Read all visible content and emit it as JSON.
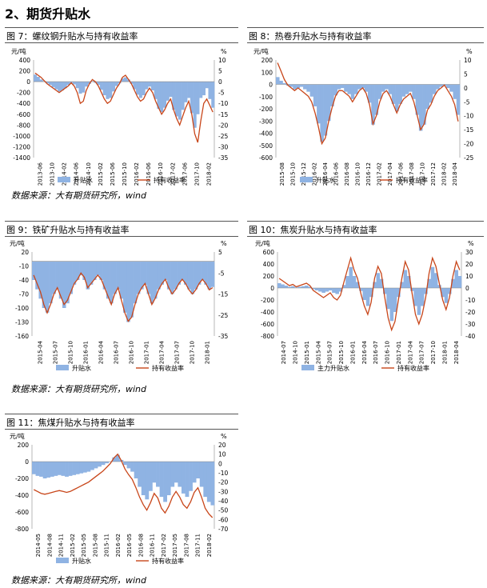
{
  "section_title": "2、期货升贴水",
  "source_text": "数据来源：大有期货研究所，wind",
  "colors": {
    "bar": "#8fb3e3",
    "line": "#c8461a"
  },
  "chart_data": [
    {
      "id": "c7",
      "type": "bar",
      "title": "图 7：螺纹钢升贴水与持有收益率",
      "ylabel_left": "元/吨",
      "ylabel_right": "%",
      "left_ticks": [
        "400",
        "200",
        "0",
        "-200",
        "-400",
        "-600",
        "-800",
        "-1000",
        "-1200",
        "-1400"
      ],
      "right_ticks": [
        "10",
        "5",
        "0",
        "-5",
        "-10",
        "-15",
        "-20",
        "-25",
        "-30",
        "-35"
      ],
      "x_ticks": [
        "2013-06",
        "2013-10",
        "2014-02",
        "2014-06",
        "2014-10",
        "2015-02",
        "2015-06",
        "2015-10",
        "2016-02",
        "2016-06",
        "2016-10",
        "2017-02",
        "2017-06",
        "2017-10",
        "2018-02"
      ],
      "legend": [
        {
          "label": "升贴水",
          "kind": "bar"
        },
        {
          "label": "持有收益率",
          "kind": "line"
        }
      ],
      "ylim_left": [
        -1400,
        400
      ],
      "ylim_right": [
        -35,
        10
      ],
      "bar_values": [
        130,
        90,
        40,
        10,
        -30,
        -60,
        -100,
        -140,
        -180,
        -160,
        -120,
        -60,
        -20,
        -50,
        -120,
        -220,
        -200,
        -90,
        -40,
        10,
        -20,
        -60,
        -150,
        -250,
        -320,
        -300,
        -180,
        -80,
        -30,
        60,
        80,
        40,
        -40,
        -140,
        -240,
        -300,
        -250,
        -140,
        -90,
        -160,
        -320,
        -500,
        -560,
        -480,
        -350,
        -280,
        -520,
        -640,
        -700,
        -520,
        -380,
        -300,
        -580,
        -850,
        -600,
        -300,
        -250,
        -120,
        -320,
        -480
      ],
      "line_values": [
        4,
        3,
        2,
        0.5,
        -1,
        -2,
        -3,
        -4,
        -5,
        -4,
        -3,
        -2,
        -0.5,
        -2,
        -5,
        -10,
        -9,
        -4,
        -1,
        1,
        0,
        -2,
        -5,
        -8,
        -10,
        -9,
        -6,
        -3,
        -1,
        2,
        3,
        1,
        -1,
        -4,
        -7,
        -9,
        -8,
        -5,
        -3,
        -5,
        -9,
        -12,
        -15,
        -13,
        -10,
        -8,
        -13,
        -17,
        -20,
        -16,
        -12,
        -9,
        -15,
        -24,
        -28,
        -18,
        -10,
        -8,
        -11,
        -14
      ]
    },
    {
      "id": "c8",
      "type": "bar",
      "title": "图 8：热卷升贴水与持有收益率",
      "ylabel_left": "元/吨",
      "ylabel_right": "%",
      "left_ticks": [
        "200",
        "100",
        "0",
        "-100",
        "-200",
        "-300",
        "-400",
        "-500",
        "-600"
      ],
      "right_ticks": [
        "10",
        "5",
        "0",
        "-5",
        "-10",
        "-15",
        "-20",
        "-25"
      ],
      "x_ticks": [
        "2015-08",
        "2015-10",
        "2015-12",
        "2016-02",
        "2016-04",
        "2016-06",
        "2016-08",
        "2016-10",
        "2016-12",
        "2017-02",
        "2017-04",
        "2017-06",
        "2017-08",
        "2017-10",
        "2017-12",
        "2018-02",
        "2018-04"
      ],
      "legend": [
        {
          "label": "升贴水",
          "kind": "bar"
        },
        {
          "label": "持有收益率",
          "kind": "line"
        }
      ],
      "ylim_left": [
        -600,
        200
      ],
      "ylim_right": [
        -25,
        10
      ],
      "bar_values": [
        60,
        30,
        10,
        -10,
        -20,
        -40,
        -30,
        -20,
        -40,
        -60,
        -100,
        -180,
        -320,
        -470,
        -420,
        -300,
        -180,
        -90,
        -40,
        -30,
        -60,
        -80,
        -120,
        -80,
        -40,
        -30,
        -60,
        -150,
        -330,
        -250,
        -120,
        -60,
        -40,
        -80,
        -160,
        -220,
        -160,
        -100,
        -80,
        -60,
        -120,
        -250,
        -380,
        -330,
        -200,
        -150,
        -80,
        -40,
        -20,
        -10,
        -30,
        -60,
        -120,
        -250
      ],
      "line_values": [
        9,
        6,
        3,
        1,
        0,
        -1,
        0,
        -1,
        -2,
        -3,
        -5,
        -9,
        -14,
        -20,
        -18,
        -12,
        -7,
        -3,
        -1,
        -1,
        -2,
        -3,
        -5,
        -3,
        -1,
        0,
        -2,
        -6,
        -13,
        -10,
        -5,
        -2,
        -1,
        -3,
        -6,
        -9,
        -6,
        -4,
        -3,
        -2,
        -5,
        -10,
        -15,
        -13,
        -8,
        -6,
        -3,
        -1,
        0,
        1,
        -1,
        -3,
        -6,
        -12
      ]
    },
    {
      "id": "c9",
      "type": "bar",
      "title": "图 9：铁矿升贴水与持有收益率",
      "ylabel_left": "元/吨",
      "ylabel_right": "%",
      "left_ticks": [
        "20",
        "-10",
        "-40",
        "-70",
        "-100",
        "-130",
        "-160"
      ],
      "right_ticks": [
        "5",
        "-5",
        "-15",
        "-25",
        "-35"
      ],
      "x_ticks": [
        "2015-04",
        "2015-07",
        "2015-10",
        "2016-01",
        "2016-04",
        "2016-07",
        "2016-10",
        "2017-01",
        "2017-04",
        "2017-07",
        "2017-10",
        "2018-01"
      ],
      "legend": [
        {
          "label": "升贴水",
          "kind": "bar"
        },
        {
          "label": "持有收益率",
          "kind": "line"
        }
      ],
      "ylim_left": [
        -160,
        20
      ],
      "ylim_right": [
        -35,
        5
      ],
      "bar_values": [
        -40,
        -60,
        -80,
        -100,
        -110,
        -90,
        -70,
        -60,
        -80,
        -100,
        -90,
        -70,
        -50,
        -40,
        -30,
        -40,
        -60,
        -50,
        -40,
        -30,
        -40,
        -60,
        -80,
        -90,
        -70,
        -60,
        -80,
        -110,
        -130,
        -120,
        -90,
        -70,
        -60,
        -50,
        -70,
        -90,
        -80,
        -60,
        -50,
        -40,
        -60,
        -70,
        -60,
        -50,
        -40,
        -50,
        -60,
        -70,
        -60,
        -50,
        -40,
        -50,
        -60,
        -55
      ],
      "line_values": [
        -6,
        -10,
        -14,
        -20,
        -24,
        -20,
        -15,
        -12,
        -16,
        -20,
        -18,
        -14,
        -10,
        -8,
        -5,
        -7,
        -12,
        -10,
        -8,
        -6,
        -8,
        -12,
        -16,
        -20,
        -15,
        -12,
        -18,
        -24,
        -28,
        -26,
        -20,
        -15,
        -12,
        -10,
        -15,
        -20,
        -17,
        -13,
        -10,
        -8,
        -12,
        -15,
        -13,
        -10,
        -8,
        -10,
        -13,
        -15,
        -13,
        -10,
        -8,
        -10,
        -13,
        -12
      ]
    },
    {
      "id": "c10",
      "type": "bar",
      "title": "图 10：焦炭升贴水与持有收益率",
      "ylabel_left": "元/吨",
      "ylabel_right": "%",
      "left_ticks": [
        "600",
        "400",
        "200",
        "0",
        "-200",
        "-400",
        "-600",
        "-800"
      ],
      "right_ticks": [
        "30",
        "20",
        "10",
        "0",
        "-10",
        "-20",
        "-30",
        "-40"
      ],
      "x_ticks": [
        "2014-07",
        "2014-10",
        "2015-01",
        "2015-04",
        "2015-07",
        "2015-10",
        "2016-01",
        "2016-04",
        "2016-07",
        "2016-10",
        "2017-01",
        "2017-04",
        "2017-07",
        "2017-10",
        "2018-01",
        "2018-04"
      ],
      "legend": [
        {
          "label": "主力升贴水",
          "kind": "bar"
        },
        {
          "label": "持有收益率",
          "kind": "line"
        }
      ],
      "ylim_left": [
        -800,
        600
      ],
      "ylim_right": [
        -40,
        30
      ],
      "bar_values": [
        80,
        60,
        40,
        20,
        30,
        10,
        20,
        30,
        40,
        20,
        -20,
        -40,
        -60,
        -80,
        -60,
        -40,
        -80,
        -100,
        -60,
        50,
        200,
        350,
        200,
        100,
        -50,
        -200,
        -300,
        -150,
        100,
        250,
        150,
        -100,
        -350,
        -550,
        -400,
        -150,
        100,
        300,
        200,
        -50,
        -300,
        -450,
        -300,
        -100,
        150,
        350,
        250,
        50,
        -150,
        -250,
        -100,
        150,
        300,
        200
      ],
      "line_values": [
        8,
        6,
        4,
        2,
        3,
        1,
        2,
        3,
        4,
        2,
        -2,
        -4,
        -6,
        -8,
        -6,
        -4,
        -8,
        -10,
        -6,
        5,
        15,
        25,
        15,
        8,
        -5,
        -15,
        -22,
        -12,
        8,
        18,
        12,
        -8,
        -25,
        -35,
        -28,
        -10,
        8,
        22,
        15,
        -4,
        -22,
        -30,
        -22,
        -8,
        12,
        25,
        18,
        4,
        -10,
        -18,
        -8,
        10,
        22,
        15
      ]
    },
    {
      "id": "c11",
      "type": "bar",
      "title": "图 11：焦煤升贴水与持有收益率",
      "ylabel_left": "元/吨",
      "ylabel_right": "%",
      "left_ticks": [
        "200",
        "0",
        "-200",
        "-400",
        "-600",
        "-800"
      ],
      "right_ticks": [
        "20",
        "10",
        "0",
        "-10",
        "-20",
        "-30",
        "-40",
        "-50",
        "-60",
        "-70"
      ],
      "x_ticks": [
        "2014-05",
        "2014-08",
        "2014-11",
        "2015-02",
        "2015-05",
        "2015-08",
        "2015-11",
        "2016-02",
        "2016-05",
        "2016-08",
        "2016-11",
        "2017-02",
        "2017-05",
        "2017-08",
        "2017-11",
        "2018-02"
      ],
      "legend": [
        {
          "label": "升贴水",
          "kind": "bar"
        },
        {
          "label": "持有收益率",
          "kind": "line"
        }
      ],
      "ylim_left": [
        -800,
        200
      ],
      "ylim_right": [
        -70,
        20
      ],
      "bar_values": [
        -150,
        -170,
        -180,
        -200,
        -190,
        -180,
        -170,
        -160,
        -170,
        -180,
        -170,
        -160,
        -150,
        -140,
        -130,
        -120,
        -100,
        -80,
        -60,
        -40,
        -20,
        0,
        50,
        80,
        20,
        -40,
        -80,
        -120,
        -200,
        -300,
        -400,
        -450,
        -350,
        -250,
        -300,
        -420,
        -480,
        -400,
        -300,
        -250,
        -300,
        -380,
        -420,
        -350,
        -250,
        -200,
        -300,
        -420,
        -480,
        -520
      ],
      "line_values": [
        -28,
        -30,
        -32,
        -33,
        -32,
        -31,
        -30,
        -29,
        -30,
        -31,
        -30,
        -28,
        -26,
        -24,
        -22,
        -20,
        -17,
        -14,
        -11,
        -8,
        -4,
        0,
        6,
        10,
        3,
        -6,
        -12,
        -17,
        -26,
        -36,
        -44,
        -50,
        -42,
        -32,
        -37,
        -48,
        -53,
        -46,
        -36,
        -30,
        -36,
        -44,
        -48,
        -41,
        -31,
        -26,
        -36,
        -48,
        -54,
        -58
      ]
    }
  ]
}
